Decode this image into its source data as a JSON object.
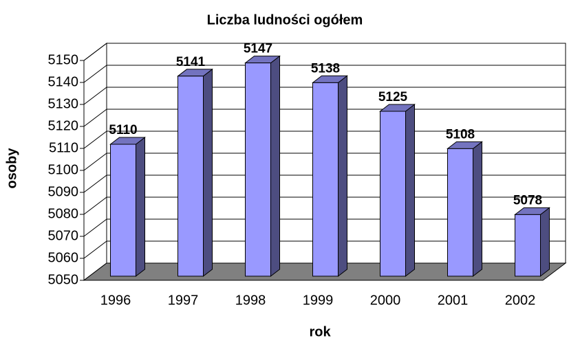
{
  "chart_data": {
    "type": "bar",
    "title": "Liczba ludności ogółem",
    "x_label": "rok",
    "y_label": "osoby",
    "categories": [
      "1996",
      "1997",
      "1998",
      "1999",
      "2000",
      "2001",
      "2002"
    ],
    "values": [
      5110,
      5141,
      5147,
      5138,
      5125,
      5108,
      5078
    ],
    "color": "#9999ff",
    "ylim": [
      5050,
      5150
    ],
    "yticks": [
      5050,
      5060,
      5070,
      5080,
      5090,
      5100,
      5110,
      5120,
      5130,
      5140,
      5150
    ],
    "grid": true
  }
}
